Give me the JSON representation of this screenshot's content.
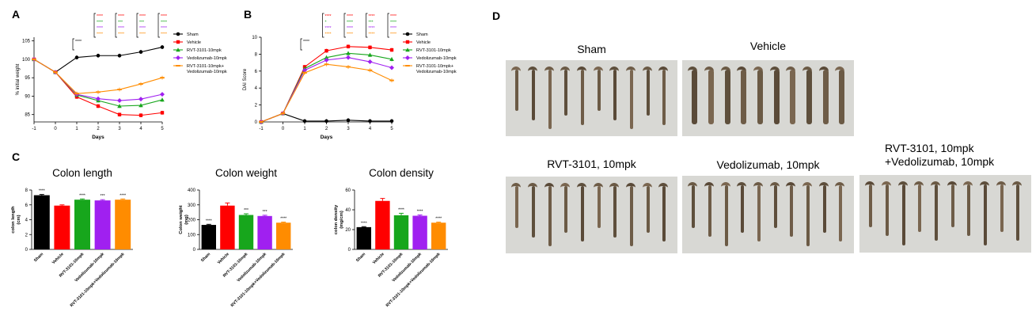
{
  "panels": {
    "a": "A",
    "b": "B",
    "c": "C",
    "d": "D"
  },
  "colors": {
    "sham": "#000000",
    "vehicle": "#ff0000",
    "rvt": "#17a61c",
    "vedo": "#a020f0",
    "combo": "#ff8c00"
  },
  "chart_data": [
    {
      "id": "A",
      "type": "line",
      "title": "",
      "xlabel": "Days",
      "ylabel": "% initial weight",
      "x": [
        -1,
        0,
        1,
        2,
        3,
        4,
        5
      ],
      "xlim": [
        -1,
        5
      ],
      "ylim": [
        83,
        106
      ],
      "yticks": [
        85,
        90,
        95,
        100,
        105
      ],
      "legend_position": "right",
      "series": [
        {
          "name": "Sham",
          "color": "#000000",
          "marker": "circle",
          "values": [
            100,
            96.5,
            100.5,
            101,
            101,
            102,
            103.3
          ]
        },
        {
          "name": "Vehicle",
          "color": "#ff0000",
          "marker": "square",
          "values": [
            100,
            96.5,
            89.8,
            87.3,
            85,
            84.8,
            85.5
          ]
        },
        {
          "name": "RVT-3101-10mpk",
          "color": "#17a61c",
          "marker": "triangle",
          "values": [
            100,
            96.5,
            90.3,
            88.8,
            87.3,
            87.5,
            89
          ]
        },
        {
          "name": "Vedolizumab-10mpk",
          "color": "#a020f0",
          "marker": "diamond",
          "values": [
            100,
            96.5,
            90.5,
            89.3,
            88.8,
            89.2,
            90.5
          ]
        },
        {
          "name": "RVT-3101-10mpk+\nVedolizumab-10mpk",
          "color": "#ff8c00",
          "marker": "dash",
          "values": [
            100,
            96.5,
            90.7,
            91.1,
            91.8,
            93.3,
            95
          ]
        }
      ],
      "annotations": [
        {
          "x": 1,
          "labels": [
            "****"
          ],
          "colors": [
            "#000000"
          ]
        },
        {
          "x": 2,
          "labels": [
            "****",
            "****",
            "****",
            "****"
          ],
          "colors": [
            "#ff0000",
            "#17a61c",
            "#a020f0",
            "#ff8c00"
          ]
        },
        {
          "x": 3,
          "labels": [
            "****",
            "***",
            "****",
            "****"
          ],
          "colors": [
            "#ff0000",
            "#17a61c",
            "#a020f0",
            "#ff8c00"
          ]
        },
        {
          "x": 4,
          "labels": [
            "****",
            "***",
            "****",
            "****"
          ],
          "colors": [
            "#ff0000",
            "#17a61c",
            "#a020f0",
            "#ff8c00"
          ]
        },
        {
          "x": 5,
          "labels": [
            "****",
            "****",
            "****",
            "****"
          ],
          "colors": [
            "#ff0000",
            "#17a61c",
            "#a020f0",
            "#ff8c00"
          ]
        }
      ]
    },
    {
      "id": "B",
      "type": "line",
      "title": "",
      "xlabel": "Days",
      "ylabel": "DAI Score",
      "x": [
        -1,
        0,
        1,
        2,
        3,
        4,
        5
      ],
      "xlim": [
        -1,
        5
      ],
      "ylim": [
        0,
        10
      ],
      "yticks": [
        0,
        2,
        4,
        6,
        8,
        10
      ],
      "legend_position": "right",
      "series": [
        {
          "name": "Sham",
          "color": "#000000",
          "marker": "circle",
          "values": [
            0,
            1,
            0.1,
            0.1,
            0.2,
            0.1,
            0.1
          ]
        },
        {
          "name": "Vehicle",
          "color": "#ff0000",
          "marker": "square",
          "values": [
            0,
            1,
            6.5,
            8.4,
            8.9,
            8.8,
            8.5
          ]
        },
        {
          "name": "RVT-3101-10mpk",
          "color": "#17a61c",
          "marker": "triangle",
          "values": [
            0,
            1,
            6.3,
            7.6,
            8.1,
            7.9,
            7.4
          ]
        },
        {
          "name": "Vedolizumab-10mpk",
          "color": "#a020f0",
          "marker": "diamond",
          "values": [
            0,
            1,
            6.1,
            7.3,
            7.6,
            7.1,
            6.4
          ]
        },
        {
          "name": "RVT-3101-10mpk+\nVedolizumab-10mpk",
          "color": "#ff8c00",
          "marker": "dash",
          "values": [
            0,
            1,
            5.8,
            6.8,
            6.5,
            6.1,
            4.9
          ]
        }
      ],
      "annotations": [
        {
          "x": 1,
          "labels": [
            "****"
          ],
          "colors": [
            "#000000"
          ]
        },
        {
          "x": 2,
          "labels": [
            "****",
            "*",
            "****",
            "****"
          ],
          "colors": [
            "#ff0000",
            "#17a61c",
            "#a020f0",
            "#ff8c00"
          ]
        },
        {
          "x": 3,
          "labels": [
            "****",
            "****",
            "****",
            "****"
          ],
          "colors": [
            "#ff0000",
            "#17a61c",
            "#a020f0",
            "#ff8c00"
          ]
        },
        {
          "x": 4,
          "labels": [
            "****",
            "***",
            "****",
            "****"
          ],
          "colors": [
            "#ff0000",
            "#17a61c",
            "#a020f0",
            "#ff8c00"
          ]
        },
        {
          "x": 5,
          "labels": [
            "****",
            "****",
            "****",
            "****"
          ],
          "colors": [
            "#ff0000",
            "#17a61c",
            "#a020f0",
            "#ff8c00"
          ]
        }
      ]
    },
    {
      "id": "C1",
      "type": "bar",
      "title": "Colon length",
      "xlabel": "",
      "ylabel": "colon length\n(cm)",
      "categories": [
        "Sham",
        "Vehicle",
        "RVT-3101-10mpk",
        "Vedolizumab-10mpk",
        "RVT-3101-10mpk+Vedolizumab-10mpk"
      ],
      "values": [
        7.3,
        5.9,
        6.7,
        6.6,
        6.7
      ],
      "errors": [
        0.1,
        0.1,
        0.1,
        0.1,
        0.1
      ],
      "colors": [
        "#000000",
        "#ff0000",
        "#17a61c",
        "#a020f0",
        "#ff8c00"
      ],
      "sig": [
        "****",
        "",
        "****",
        "***",
        "****"
      ],
      "ylim": [
        0,
        8
      ],
      "yticks": [
        0,
        2,
        4,
        6,
        8
      ]
    },
    {
      "id": "C2",
      "type": "bar",
      "title": "Colon weight",
      "xlabel": "",
      "ylabel": "Colon weight\n(mg)",
      "categories": [
        "Sham",
        "Vehicle",
        "RVT-3101-10mpk",
        "Vedolizumab-10mpk",
        "RVT-3101-10mpk+Vedolizumab-10mpk"
      ],
      "values": [
        165,
        295,
        232,
        225,
        180
      ],
      "errors": [
        4,
        18,
        8,
        5,
        4
      ],
      "colors": [
        "#000000",
        "#ff0000",
        "#17a61c",
        "#a020f0",
        "#ff8c00"
      ],
      "sig": [
        "****",
        "",
        "***",
        "***",
        "****"
      ],
      "ylim": [
        0,
        400
      ],
      "yticks": [
        0,
        100,
        200,
        300,
        400
      ]
    },
    {
      "id": "C3",
      "type": "bar",
      "title": "Colon density",
      "xlabel": "",
      "ylabel": "colon density\n(mg/cm)",
      "categories": [
        "Sham",
        "Vehicle",
        "RVT-3101-10mpk",
        "Vedolizumab-10mpk",
        "RVT-3101-10mpk+Vedolizumab-10mpk"
      ],
      "values": [
        22.5,
        49,
        34.5,
        34,
        27
      ],
      "errors": [
        0.5,
        2.5,
        2,
        0.8,
        0.6
      ],
      "colors": [
        "#000000",
        "#ff0000",
        "#17a61c",
        "#a020f0",
        "#ff8c00"
      ],
      "sig": [
        "****",
        "",
        "****",
        "****",
        "****"
      ],
      "ylim": [
        0,
        60
      ],
      "yticks": [
        0,
        20,
        40,
        60
      ]
    }
  ],
  "photos": [
    {
      "label": "Sham",
      "count": 10
    },
    {
      "label": "Vehicle",
      "count": 10
    },
    {
      "label": "RVT-3101, 10mpk",
      "count": 10
    },
    {
      "label": "Vedolizumab, 10mpk",
      "count": 10
    },
    {
      "label": "RVT-3101, 10mpk\n+Vedolizumab, 10mpk",
      "count": 10
    }
  ]
}
